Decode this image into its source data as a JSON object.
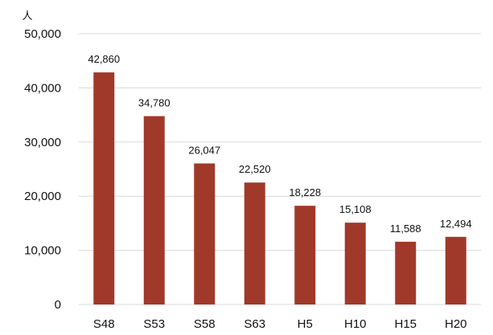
{
  "chart_data": {
    "type": "bar",
    "y_unit": "人",
    "categories": [
      "S48",
      "S53",
      "S58",
      "S63",
      "H5",
      "H10",
      "H15",
      "H20"
    ],
    "values": [
      42860,
      34780,
      26047,
      22520,
      18228,
      15108,
      11588,
      12494
    ],
    "data_labels": [
      "42,860",
      "34,780",
      "26,047",
      "22,520",
      "18,228",
      "15,108",
      "11,588",
      "12,494"
    ],
    "ylim": [
      0,
      50000
    ],
    "yticks": [
      0,
      10000,
      20000,
      30000,
      40000,
      50000
    ],
    "ytick_labels": [
      "0",
      "10,000",
      "20,000",
      "30,000",
      "40,000",
      "50,000"
    ],
    "grid": "horizontal",
    "legend": "none",
    "bar_color": "#A0392A",
    "grid_color": "#d9d9d9"
  }
}
